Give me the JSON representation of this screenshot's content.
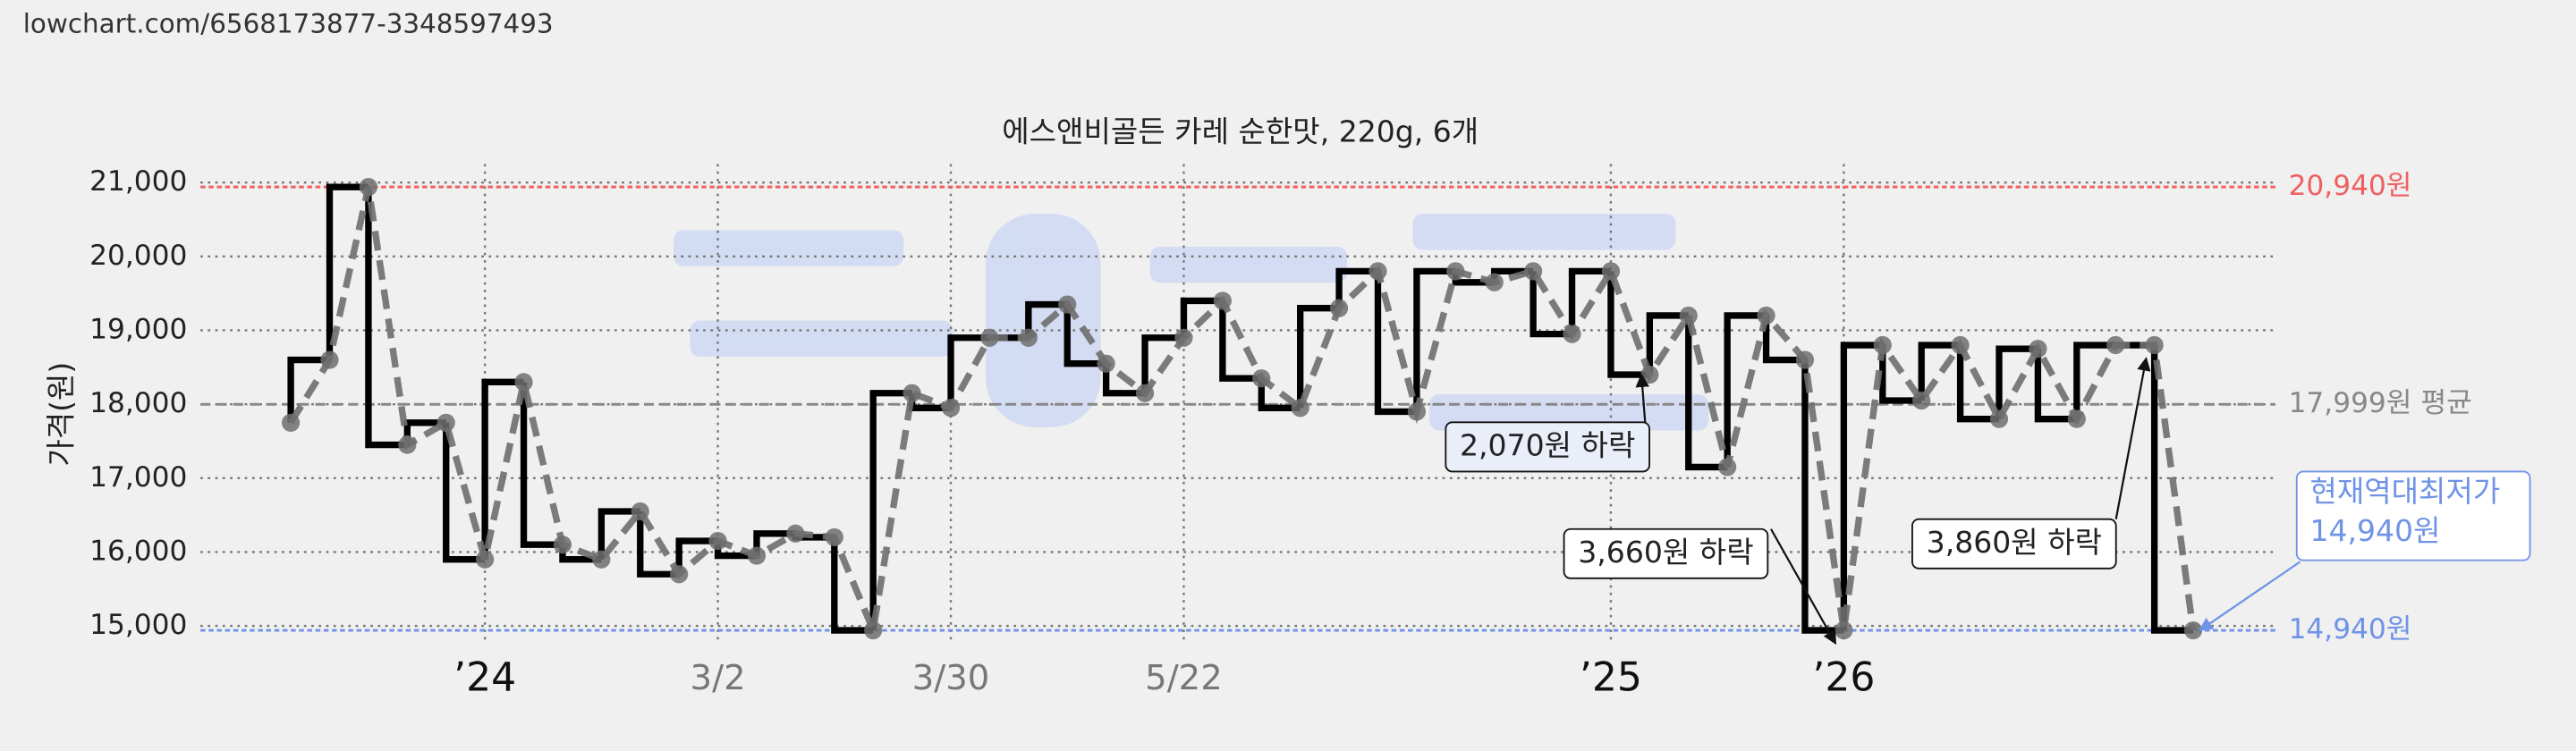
{
  "chart_data": {
    "type": "line",
    "source": "lowchart.com/6568173877-3348597493",
    "title": "에스앤비골든 카레 순한맛, 220g, 6개",
    "y_label": "가격(원)",
    "categories": [
      null,
      null,
      null,
      null,
      null,
      "’24",
      null,
      null,
      null,
      null,
      null,
      "3/2",
      null,
      null,
      null,
      null,
      null,
      "3/30",
      null,
      null,
      null,
      null,
      null,
      "5/22",
      null,
      null,
      null,
      null,
      null,
      null,
      null,
      null,
      null,
      null,
      "’25",
      null,
      null,
      null,
      null,
      null,
      "’26",
      null,
      null,
      null,
      null,
      null,
      null,
      null,
      null,
      null
    ],
    "values": [
      17750,
      18600,
      20940,
      17450,
      17750,
      15900,
      18300,
      16100,
      15900,
      16550,
      15700,
      16150,
      15950,
      16250,
      16200,
      14940,
      18150,
      17950,
      18900,
      18900,
      19350,
      18550,
      18150,
      18900,
      19400,
      18350,
      17950,
      19300,
      19800,
      17900,
      19800,
      19650,
      19800,
      18950,
      19800,
      18400,
      19200,
      17150,
      19200,
      18600,
      14940,
      18800,
      18050,
      18800,
      17800,
      18750,
      17800,
      18800,
      18800,
      14940
    ],
    "step_color": "#000000",
    "line_color": "#6e6e6e",
    "ylim": [
      14750,
      21250
    ],
    "yticks": [
      {
        "value": 15000,
        "label": "15,000"
      },
      {
        "value": 16000,
        "label": "16,000"
      },
      {
        "value": 17000,
        "label": "17,000"
      },
      {
        "value": 18000,
        "label": "18,000"
      },
      {
        "value": 19000,
        "label": "19,000"
      },
      {
        "value": 20000,
        "label": "20,000"
      },
      {
        "value": 21000,
        "label": "21,000"
      }
    ],
    "grid": true,
    "reference_lines": [
      {
        "value": 20940,
        "label": "20,940원",
        "color": "#f06060"
      },
      {
        "value": 17999,
        "label": "17,999원 평균",
        "color": "#888888"
      },
      {
        "value": 14940,
        "label": "14,940원",
        "color": "#6f93e6"
      }
    ],
    "annotations": [
      {
        "text": "2,070원 하락"
      },
      {
        "text": "3,660원 하락"
      },
      {
        "text": "3,860원 하락"
      },
      {
        "text": "현재역대최저가",
        "value": 14940,
        "label": "14,940원",
        "color": "#6f93e6"
      }
    ]
  }
}
